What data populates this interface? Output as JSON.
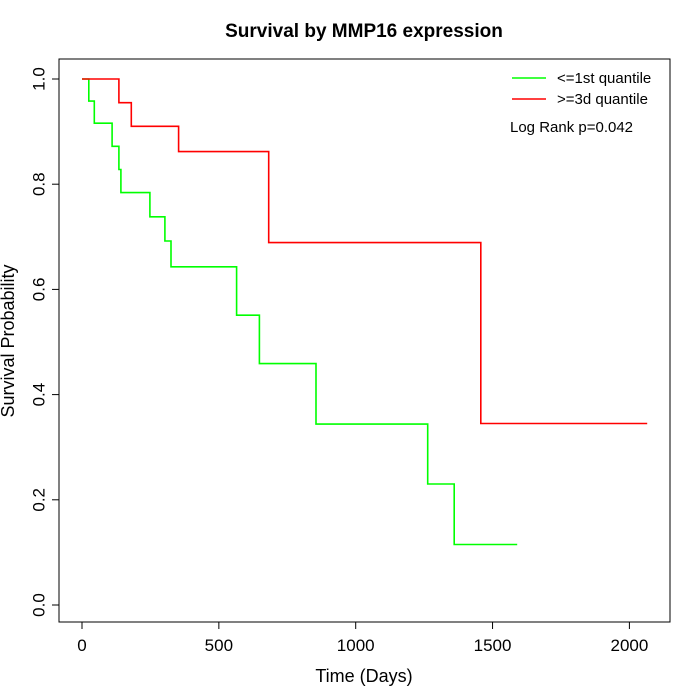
{
  "chart_data": {
    "type": "line",
    "title": "Survival by MMP16 expression",
    "xlabel": "Time (Days)",
    "ylabel": "Survival Probability",
    "xlim": [
      0,
      2100
    ],
    "ylim": [
      0,
      1
    ],
    "x_ticks": [
      0,
      500,
      1000,
      1500,
      2000
    ],
    "x_tick_labels": [
      "0",
      "500",
      "1000",
      "1500",
      "2000"
    ],
    "y_ticks": [
      0,
      0.2,
      0.4,
      0.6,
      0.8,
      1.0
    ],
    "y_tick_labels": [
      "0.0",
      "0.2",
      "0.4",
      "0.6",
      "0.8",
      "1.0"
    ],
    "grid": false,
    "legend_position": "top-right",
    "annotation": "Log Rank p=0.042",
    "series": [
      {
        "name": "<=1st quantile",
        "color": "#00ff00",
        "step": true,
        "points": [
          [
            0,
            1.0
          ],
          [
            25,
            1.0
          ],
          [
            25,
            0.958
          ],
          [
            45,
            0.958
          ],
          [
            45,
            0.916
          ],
          [
            110,
            0.916
          ],
          [
            110,
            0.872
          ],
          [
            135,
            0.872
          ],
          [
            135,
            0.828
          ],
          [
            142,
            0.828
          ],
          [
            142,
            0.784
          ],
          [
            248,
            0.784
          ],
          [
            248,
            0.738
          ],
          [
            303,
            0.738
          ],
          [
            303,
            0.692
          ],
          [
            325,
            0.692
          ],
          [
            325,
            0.643
          ],
          [
            565,
            0.643
          ],
          [
            565,
            0.551
          ],
          [
            648,
            0.551
          ],
          [
            648,
            0.459
          ],
          [
            855,
            0.459
          ],
          [
            855,
            0.344
          ],
          [
            1263,
            0.344
          ],
          [
            1263,
            0.23
          ],
          [
            1360,
            0.23
          ],
          [
            1360,
            0.115
          ],
          [
            1590,
            0.115
          ]
        ]
      },
      {
        "name": ">=3d quantile",
        "color": "#ff0000",
        "step": true,
        "points": [
          [
            0,
            1.0
          ],
          [
            135,
            1.0
          ],
          [
            135,
            0.955
          ],
          [
            180,
            0.955
          ],
          [
            180,
            0.91
          ],
          [
            353,
            0.91
          ],
          [
            353,
            0.862
          ],
          [
            682,
            0.862
          ],
          [
            682,
            0.689
          ],
          [
            1457,
            0.689
          ],
          [
            1457,
            0.345
          ],
          [
            2065,
            0.345
          ]
        ]
      }
    ]
  }
}
